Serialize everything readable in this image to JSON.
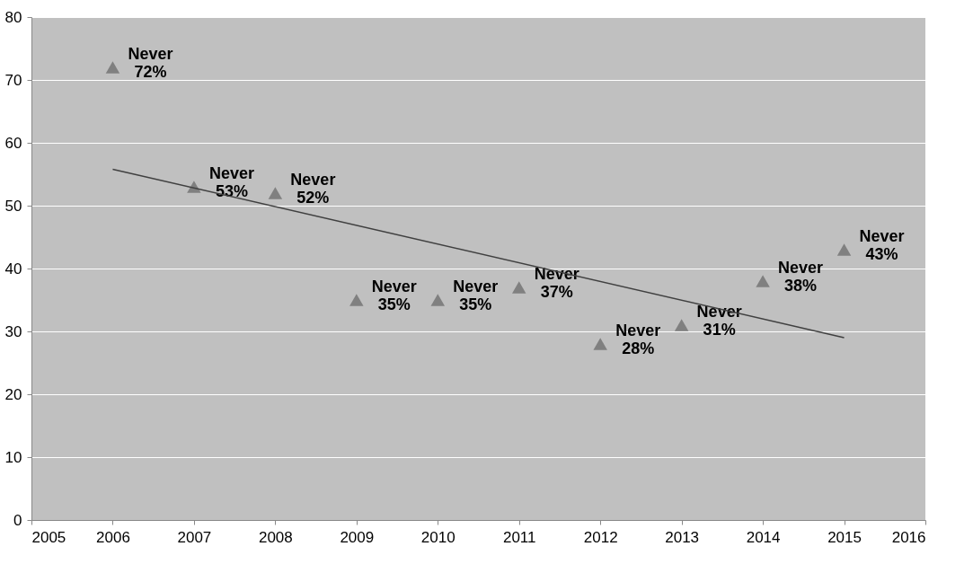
{
  "chart_data": {
    "type": "scatter",
    "marker": "triangle",
    "grid": "y",
    "xlim": [
      2005,
      2016
    ],
    "xticks": [
      2005,
      2006,
      2007,
      2008,
      2009,
      2010,
      2011,
      2012,
      2013,
      2014,
      2015,
      2016
    ],
    "ylim": [
      0,
      80
    ],
    "yticks": [
      0,
      10,
      20,
      30,
      40,
      50,
      60,
      70,
      80
    ],
    "series": [
      {
        "color": "#808080",
        "x": [
          2006,
          2007,
          2008,
          2009,
          2010,
          2011,
          2012,
          2013,
          2014,
          2015
        ],
        "values": [
          72,
          53,
          52,
          35,
          35,
          37,
          28,
          31,
          38,
          43
        ],
        "value_labels": [
          "Never\n72%",
          "Never\n53%",
          "Never\n52%",
          "Never\n35%",
          "Never\n35%",
          "Never\n37%",
          "Never\n28%",
          "Never\n31%",
          "Never\n38%",
          "Never\n43%"
        ]
      },
      {
        "type": "line",
        "marker": "none",
        "color": "#404040",
        "x": [
          2006,
          2015
        ],
        "values": [
          55.8,
          29.0
        ]
      }
    ]
  }
}
